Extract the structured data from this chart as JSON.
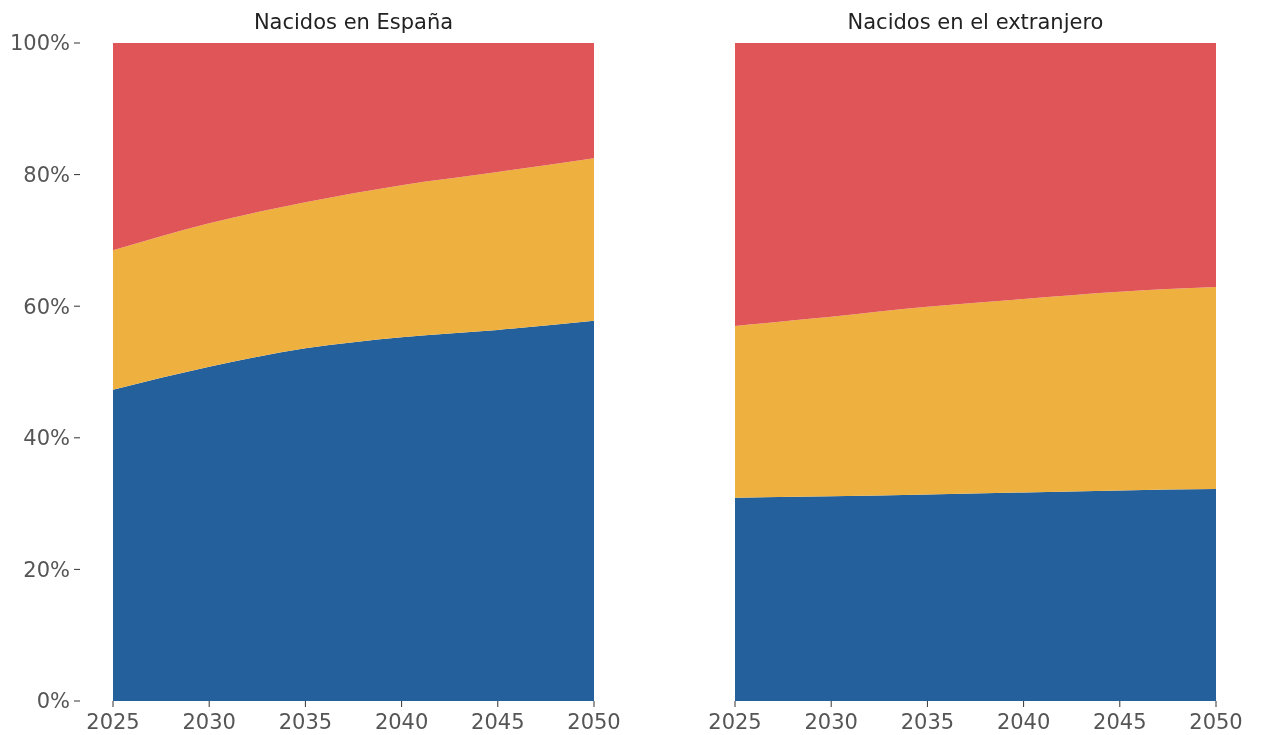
{
  "chart_data": [
    {
      "type": "area",
      "title": "Nacidos en España",
      "stacked": true,
      "x": [
        2025,
        2030,
        2035,
        2040,
        2045,
        2050
      ],
      "series": [
        {
          "color": "#23609c",
          "values": [
            47.3,
            50.8,
            53.6,
            55.3,
            56.4,
            57.8
          ]
        },
        {
          "color": "#eeb13f",
          "values": [
            21.2,
            21.8,
            22.2,
            23.1,
            24.0,
            24.7
          ]
        },
        {
          "color": "#e05557",
          "values": [
            31.5,
            27.4,
            24.2,
            21.6,
            19.6,
            17.5
          ]
        }
      ],
      "xlim": [
        2025,
        2050
      ],
      "xticks": [
        2025,
        2030,
        2035,
        2040,
        2045,
        2050
      ],
      "ylim": [
        0,
        100
      ],
      "yticks": [
        {
          "value": 0,
          "label": "0%"
        },
        {
          "value": 20,
          "label": "20%"
        },
        {
          "value": 40,
          "label": "40%"
        },
        {
          "value": 60,
          "label": "60%"
        },
        {
          "value": 80,
          "label": "80%"
        },
        {
          "value": 100,
          "label": "100%"
        }
      ],
      "tick_labels": "xy"
    },
    {
      "type": "area",
      "title": "Nacidos en el extranjero",
      "stacked": true,
      "x": [
        2025,
        2030,
        2035,
        2040,
        2045,
        2050
      ],
      "series": [
        {
          "color": "#23609c",
          "values": [
            30.9,
            31.1,
            31.4,
            31.7,
            32.0,
            32.2
          ]
        },
        {
          "color": "#eeb13f",
          "values": [
            26.1,
            27.3,
            28.5,
            29.4,
            30.2,
            30.7
          ]
        },
        {
          "color": "#e05557",
          "values": [
            43.0,
            41.6,
            40.1,
            38.9,
            37.8,
            37.1
          ]
        }
      ],
      "xlim": [
        2025,
        2050
      ],
      "xticks": [
        2025,
        2030,
        2035,
        2040,
        2045,
        2050
      ],
      "ylim": [
        0,
        100
      ],
      "tick_labels": "x"
    }
  ]
}
